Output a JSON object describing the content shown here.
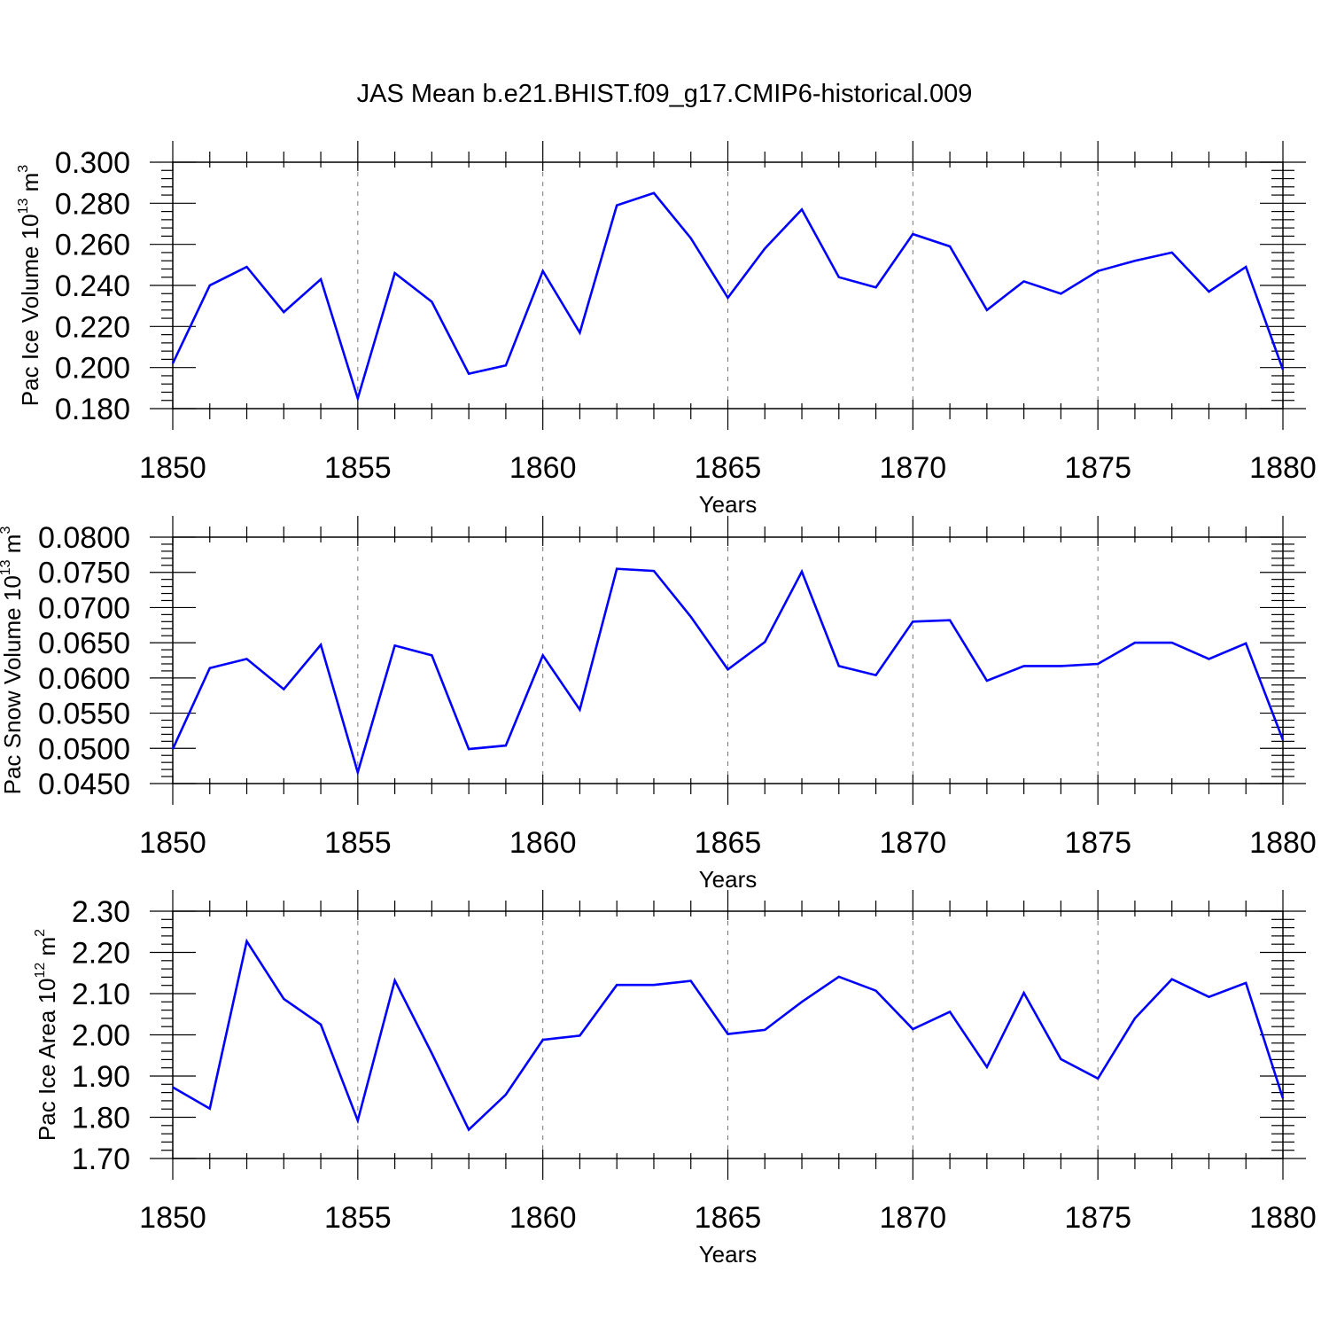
{
  "figure": {
    "title": "JAS Mean b.e21.BHIST.f09_g17.CMIP6-historical.009",
    "line_color": "#0000ff"
  },
  "chart_data": [
    {
      "type": "line",
      "title": "",
      "xlabel": "Years",
      "ylabel_main": "Pac Ice Volume 10",
      "ylabel_exp": "13",
      "ylabel_unit": " m",
      "ylabel_unit_exp": "3",
      "xlim": [
        1850,
        1880
      ],
      "ylim": [
        0.18,
        0.3
      ],
      "ytick_step": 0.02,
      "ytick_labels": [
        "0.180",
        "0.200",
        "0.220",
        "0.240",
        "0.260",
        "0.280",
        "0.300"
      ],
      "xticks": [
        1850,
        1855,
        1860,
        1865,
        1870,
        1875,
        1880
      ],
      "grid": "vertical dashed at major x ticks",
      "x": [
        1850,
        1851,
        1852,
        1853,
        1854,
        1855,
        1856,
        1857,
        1858,
        1859,
        1860,
        1861,
        1862,
        1863,
        1864,
        1865,
        1866,
        1867,
        1868,
        1869,
        1870,
        1871,
        1872,
        1873,
        1874,
        1875,
        1876,
        1877,
        1878,
        1879,
        1880
      ],
      "values": [
        0.202,
        0.24,
        0.249,
        0.227,
        0.243,
        0.185,
        0.246,
        0.232,
        0.197,
        0.201,
        0.247,
        0.217,
        0.279,
        0.285,
        0.263,
        0.234,
        0.258,
        0.277,
        0.244,
        0.239,
        0.265,
        0.259,
        0.228,
        0.242,
        0.236,
        0.247,
        0.252,
        0.256,
        0.237,
        0.249,
        0.199
      ]
    },
    {
      "type": "line",
      "title": "",
      "xlabel": "Years",
      "ylabel_main": "Pac Snow Volume 10",
      "ylabel_exp": "13",
      "ylabel_unit": " m",
      "ylabel_unit_exp": "3",
      "xlim": [
        1850,
        1880
      ],
      "ylim": [
        0.045,
        0.08
      ],
      "ytick_step": 0.005,
      "ytick_labels": [
        "0.0450",
        "0.0500",
        "0.0550",
        "0.0600",
        "0.0650",
        "0.0700",
        "0.0750",
        "0.0800"
      ],
      "xticks": [
        1850,
        1855,
        1860,
        1865,
        1870,
        1875,
        1880
      ],
      "grid": "vertical dashed at major x ticks",
      "x": [
        1850,
        1851,
        1852,
        1853,
        1854,
        1855,
        1856,
        1857,
        1858,
        1859,
        1860,
        1861,
        1862,
        1863,
        1864,
        1865,
        1866,
        1867,
        1868,
        1869,
        1870,
        1871,
        1872,
        1873,
        1874,
        1875,
        1876,
        1877,
        1878,
        1879,
        1880
      ],
      "values": [
        0.0499,
        0.0614,
        0.0627,
        0.0584,
        0.0647,
        0.0466,
        0.0646,
        0.0632,
        0.0499,
        0.0504,
        0.0632,
        0.0555,
        0.0755,
        0.0752,
        0.0687,
        0.0612,
        0.0651,
        0.0751,
        0.0617,
        0.0604,
        0.068,
        0.0682,
        0.0596,
        0.0617,
        0.0617,
        0.062,
        0.065,
        0.065,
        0.0627,
        0.0649,
        0.0512
      ]
    },
    {
      "type": "line",
      "title": "",
      "xlabel": "Years",
      "ylabel_main": "Pac Ice Area 10",
      "ylabel_exp": "12",
      "ylabel_unit": " m",
      "ylabel_unit_exp": "2",
      "xlim": [
        1850,
        1880
      ],
      "ylim": [
        1.7,
        2.3
      ],
      "ytick_step": 0.1,
      "ytick_labels": [
        "1.70",
        "1.80",
        "1.90",
        "2.00",
        "2.10",
        "2.20",
        "2.30"
      ],
      "xticks": [
        1850,
        1855,
        1860,
        1865,
        1870,
        1875,
        1880
      ],
      "grid": "vertical dashed at major x ticks",
      "x": [
        1850,
        1851,
        1852,
        1853,
        1854,
        1855,
        1856,
        1857,
        1858,
        1859,
        1860,
        1861,
        1862,
        1863,
        1864,
        1865,
        1866,
        1867,
        1868,
        1869,
        1870,
        1871,
        1872,
        1873,
        1874,
        1875,
        1876,
        1877,
        1878,
        1879,
        1880
      ],
      "values": [
        1.873,
        1.821,
        2.227,
        2.087,
        2.025,
        1.792,
        2.132,
        1.955,
        1.77,
        1.855,
        1.988,
        1.998,
        2.121,
        2.121,
        2.131,
        2.002,
        2.012,
        2.08,
        2.141,
        2.107,
        2.014,
        2.056,
        1.922,
        2.102,
        1.941,
        1.894,
        2.04,
        2.135,
        2.092,
        2.126,
        1.846
      ]
    }
  ]
}
